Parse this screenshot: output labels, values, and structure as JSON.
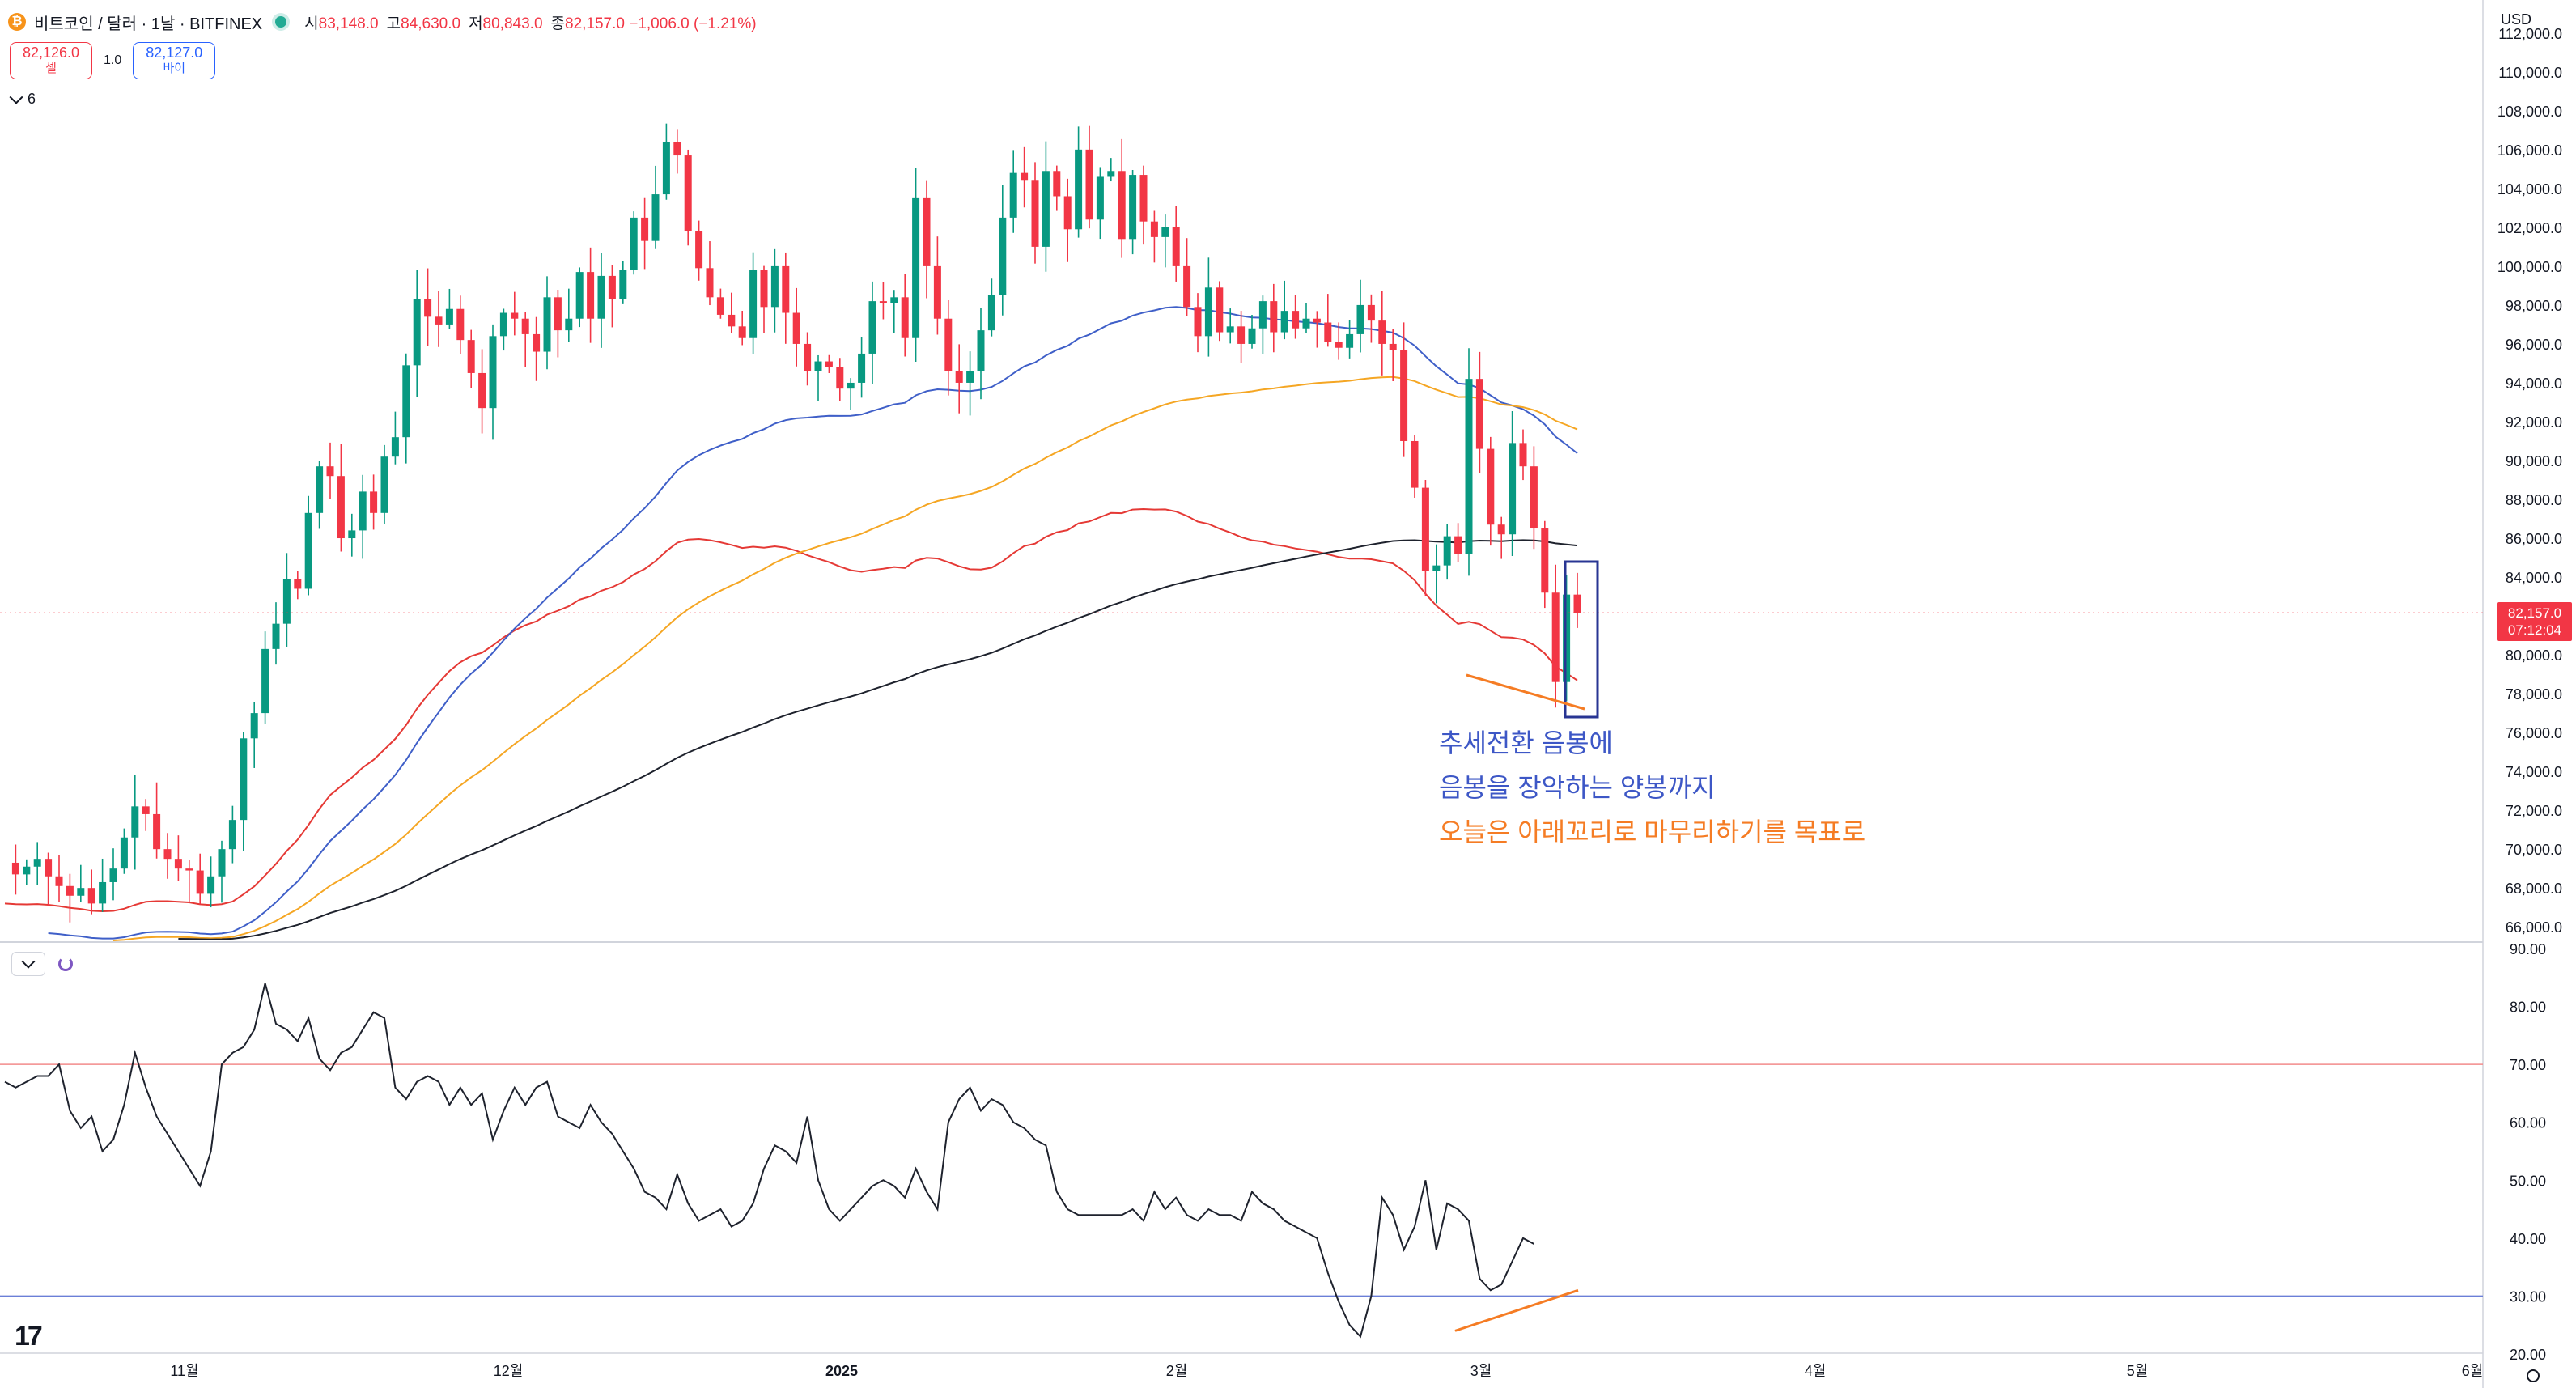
{
  "header": {
    "symbol_title": "비트코인 / 달러 · 1날 · BITFINEX",
    "coin_glyph": "₿",
    "ohlc": [
      {
        "k": "시",
        "v": "83,148.0"
      },
      {
        "k": "고",
        "v": "84,630.0"
      },
      {
        "k": "저",
        "v": "80,843.0"
      },
      {
        "k": "종",
        "v": "82,157.0 −1,006.0 (−1.21%)"
      }
    ]
  },
  "trade": {
    "sell_price": "82,126.0",
    "sell_label": "셀",
    "spread": "1.0",
    "buy_price": "82,127.0",
    "buy_label": "바이"
  },
  "indicators_toggle": {
    "count": "6"
  },
  "currency": "USD",
  "logo": "17",
  "annotations": {
    "line1": "추세전환 음봉에",
    "line2": "음봉을 장악하는 양봉까지",
    "line3": "오늘은 아래꼬리로 마무리하기를 목표로"
  },
  "last_price": {
    "price": "82,157.0",
    "countdown": "07:12:04"
  },
  "colors": {
    "up": "#089981",
    "down": "#f23645",
    "ema_red": "#e53935",
    "ema_blue": "#3f5fc8",
    "ema_orange": "#f5a623",
    "ema_black": "#1e222d",
    "rsi_line": "#1e222d",
    "rsi_upper": "#f28b8b",
    "rsi_lower": "#6b7fd7",
    "box": "#283593",
    "trendline": "#f57c24"
  },
  "chart_data": {
    "type": "candlestick",
    "x_ticks": [
      "11월",
      "12월",
      "2025",
      "2월",
      "3월",
      "4월",
      "5월",
      "6월"
    ],
    "price_ticks": [
      "66,000.0",
      "68,000.0",
      "70,000.0",
      "72,000.0",
      "74,000.0",
      "76,000.0",
      "78,000.0",
      "80,000.0",
      "82,000.0",
      "84,000.0",
      "86,000.0",
      "88,000.0",
      "90,000.0",
      "92,000.0",
      "94,000.0",
      "96,000.0",
      "98,000.0",
      "100,000.0",
      "102,000.0",
      "104,000.0",
      "106,000.0",
      "108,000.0",
      "110,000.0",
      "112,000.0"
    ],
    "price_range": [
      65300,
      112200
    ],
    "close_path": [
      69300,
      68700,
      69100,
      69500,
      68600,
      68100,
      67600,
      68000,
      67200,
      68300,
      69000,
      70600,
      72200,
      71800,
      70000,
      69500,
      69000,
      68900,
      67700,
      68600,
      70000,
      71500,
      75700,
      77000,
      80300,
      81600,
      83900,
      83400,
      87300,
      89700,
      89200,
      86000,
      86400,
      88400,
      87300,
      90200,
      91200,
      94900,
      98300,
      97400,
      97000,
      97800,
      96200,
      94500,
      92700,
      96400,
      97600,
      97300,
      96500,
      95600,
      98400,
      96700,
      97300,
      99700,
      97300,
      99500,
      98300,
      99800,
      102500,
      101300,
      103700,
      106400,
      105700,
      101800,
      99900,
      98400,
      97500,
      96900,
      96300,
      99800,
      97900,
      100000,
      97600,
      96000,
      94600,
      95100,
      94800,
      93700,
      94000,
      95500,
      98200,
      98100,
      98400,
      96300,
      103500,
      100000,
      97300,
      94600,
      94000,
      94600,
      96700,
      98500,
      102500,
      104800,
      104400,
      101000,
      104900,
      103600,
      101900,
      106000,
      102400,
      104600,
      104900,
      101400,
      104700,
      102300,
      101500,
      102000,
      100000,
      97900,
      96400,
      98900,
      96600,
      96900,
      96000,
      96800,
      98200,
      96600,
      97700,
      96800,
      97300,
      97100,
      96100,
      95800,
      96500,
      98000,
      97200,
      96000,
      95700,
      91000,
      88600,
      84300,
      84600,
      86100,
      85200,
      94200,
      90600,
      86700,
      86200,
      90900,
      89700,
      86500,
      83200,
      78600,
      83100,
      82157
    ],
    "ema_red_range": [
      66800,
      87500
    ],
    "ema_blue_range": [
      65400,
      97900
    ],
    "ema_orange_range": [
      65300,
      94300
    ],
    "ema_black_range": [
      65300,
      85900
    ],
    "rsi": {
      "ticks": [
        "20.00",
        "30.00",
        "40.00",
        "50.00",
        "60.00",
        "70.00",
        "80.00",
        "90.00"
      ],
      "range": [
        20,
        90
      ],
      "levels": [
        70,
        30
      ],
      "values": [
        67,
        66,
        67,
        68,
        68,
        70,
        62,
        59,
        61,
        55,
        57,
        63,
        72,
        66,
        61,
        58,
        55,
        52,
        49,
        55,
        70,
        72,
        73,
        76,
        84,
        77,
        76,
        74,
        78,
        71,
        69,
        72,
        73,
        76,
        79,
        78,
        66,
        64,
        67,
        68,
        67,
        63,
        66,
        63,
        65,
        57,
        62,
        66,
        63,
        66,
        67,
        61,
        60,
        59,
        63,
        60,
        58,
        55,
        52,
        48,
        47,
        45,
        51,
        46,
        43,
        44,
        45,
        42,
        43,
        46,
        52,
        56,
        55,
        53,
        61,
        50,
        45,
        43,
        45,
        47,
        49,
        50,
        49,
        47,
        52,
        48,
        45,
        60,
        64,
        66,
        62,
        64,
        63,
        60,
        59,
        57,
        56,
        48,
        45,
        44,
        44,
        44,
        44,
        44,
        45,
        43,
        48,
        45,
        47,
        44,
        43,
        45,
        44,
        44,
        43,
        48,
        46,
        45,
        43,
        42,
        41,
        40,
        34,
        29,
        25,
        23,
        30,
        47,
        44,
        38,
        42,
        50,
        38,
        46,
        45,
        43,
        33,
        31,
        32,
        36,
        40,
        39
      ]
    }
  }
}
